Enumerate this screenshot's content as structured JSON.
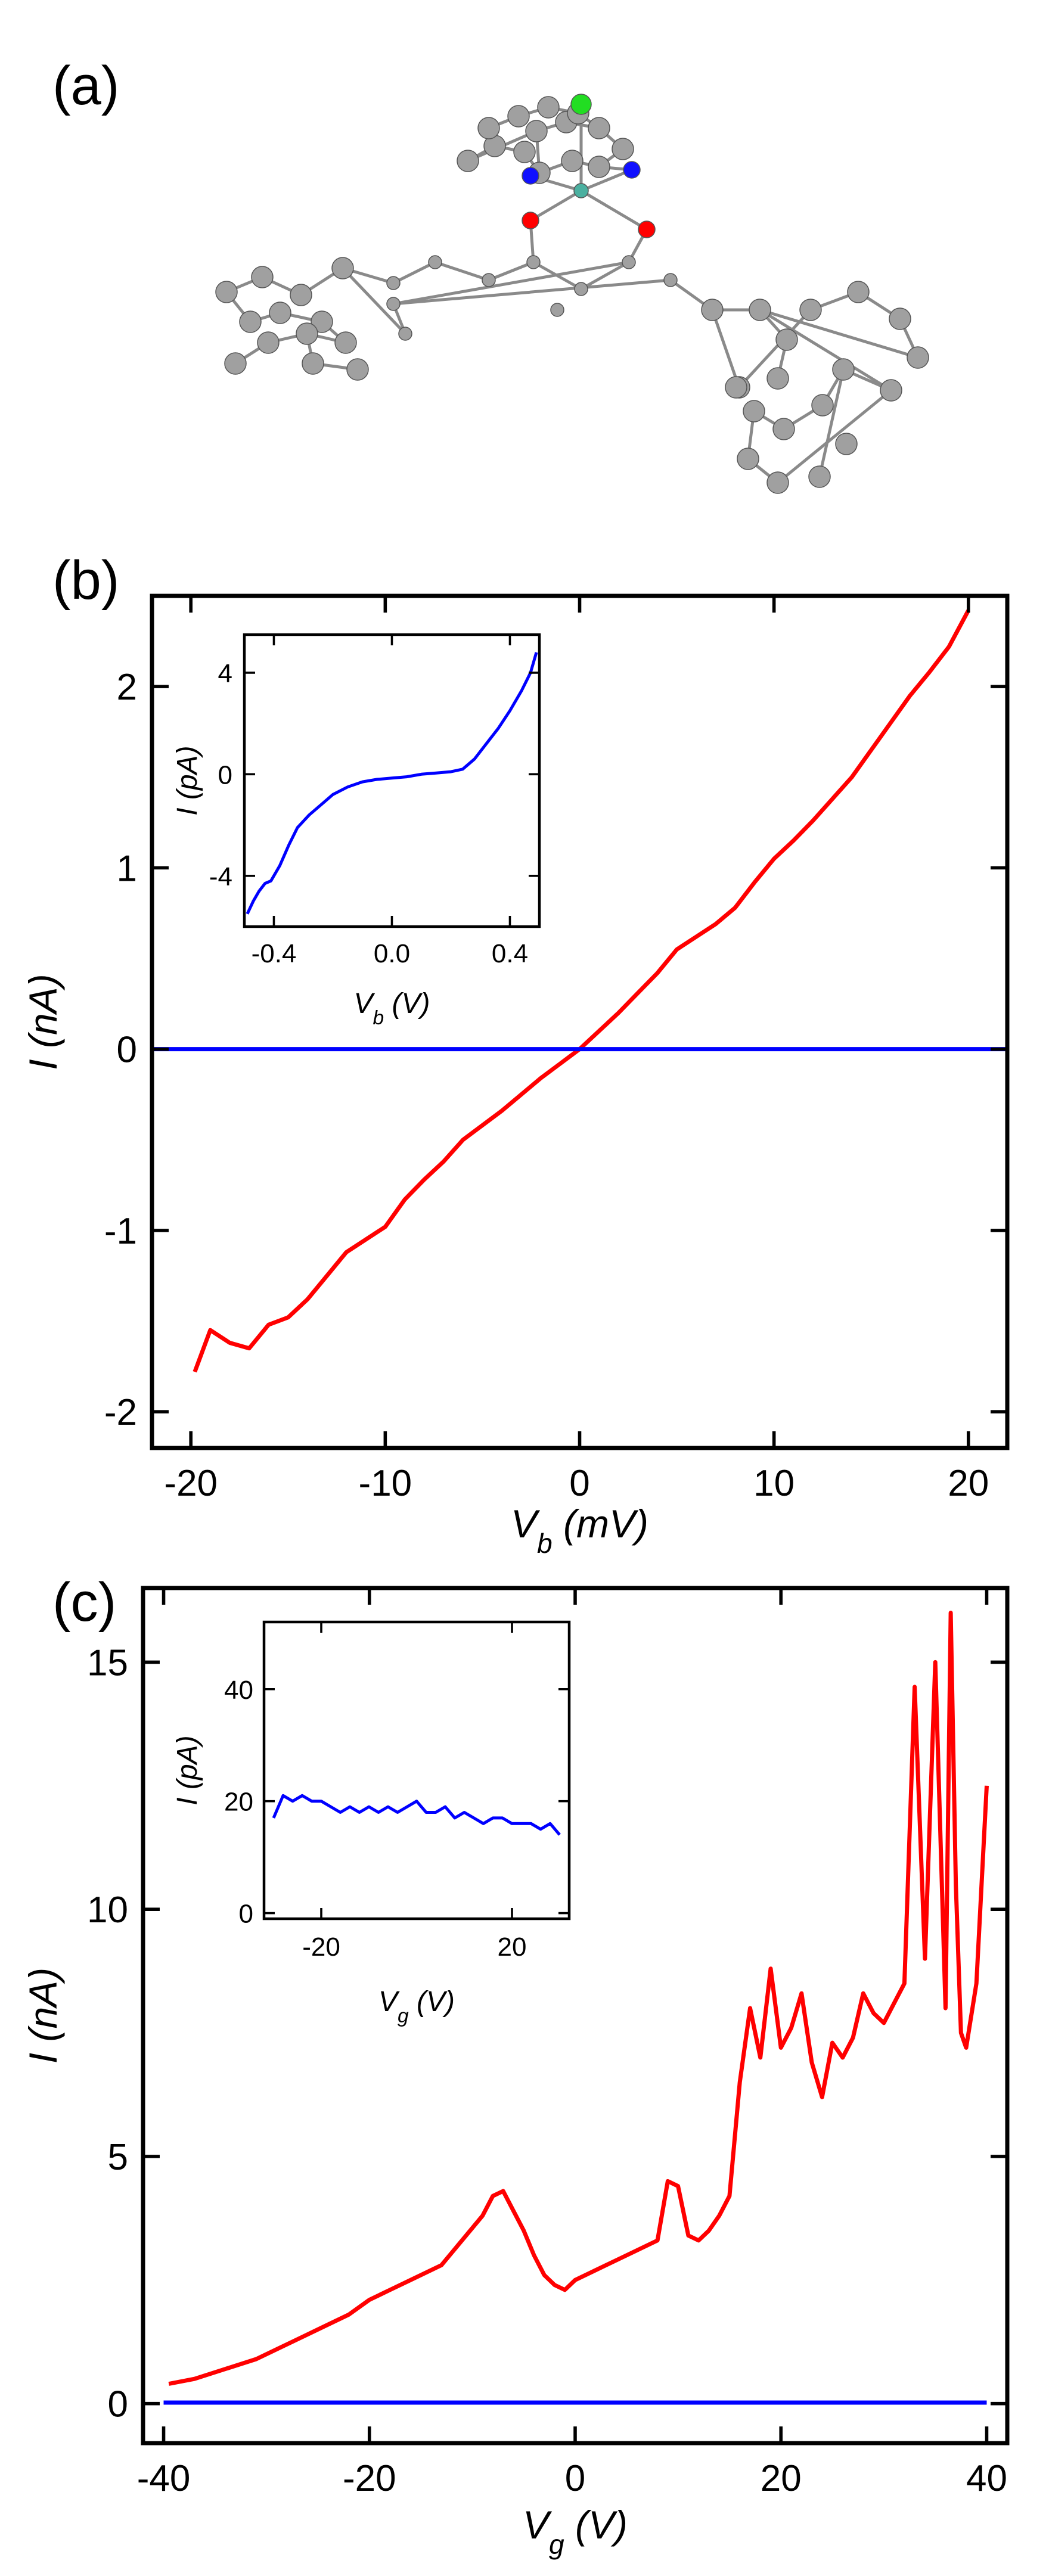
{
  "panels": {
    "a": {
      "label": "(a)"
    },
    "b": {
      "label": "(b)"
    },
    "c": {
      "label": "(c)"
    }
  },
  "chart_data": [
    {
      "id": "b-main",
      "type": "line",
      "xlabel_main": "V",
      "xlabel_sub": "b",
      "xlabel_unit": " (mV)",
      "ylabel": "I (nA)",
      "xlim": [
        -22,
        22
      ],
      "ylim": [
        -2.2,
        2.5
      ],
      "xticks": [
        -20,
        -10,
        0,
        10,
        20
      ],
      "xtick_labels": [
        "-20",
        "-10",
        "0",
        "10",
        "20"
      ],
      "yticks": [
        -2,
        -1,
        0,
        1,
        2
      ],
      "ytick_labels": [
        "-2",
        "-1",
        "0",
        "1",
        "2"
      ],
      "series": [
        {
          "color": "#ff0000",
          "x": [
            -19.8,
            -19,
            -18,
            -17,
            -16,
            -15,
            -14,
            -13,
            -12,
            -11,
            -10,
            -9,
            -8,
            -7,
            -6,
            -5,
            -4,
            -3,
            -2,
            -1,
            0,
            1,
            2,
            3,
            4,
            5,
            6,
            7,
            8,
            9,
            10,
            11,
            12,
            13,
            14,
            15,
            16,
            17,
            18,
            19,
            20
          ],
          "y": [
            -1.78,
            -1.55,
            -1.62,
            -1.65,
            -1.52,
            -1.48,
            -1.38,
            -1.25,
            -1.12,
            -1.05,
            -0.98,
            -0.83,
            -0.72,
            -0.62,
            -0.5,
            -0.42,
            -0.34,
            -0.25,
            -0.16,
            -0.08,
            0,
            0.1,
            0.2,
            0.31,
            0.42,
            0.55,
            0.62,
            0.69,
            0.78,
            0.92,
            1.05,
            1.15,
            1.26,
            1.38,
            1.5,
            1.65,
            1.8,
            1.95,
            2.08,
            2.22,
            2.42
          ]
        },
        {
          "color": "#0000ff",
          "x": [
            -22,
            22
          ],
          "y": [
            0,
            0
          ]
        }
      ]
    },
    {
      "id": "b-inset",
      "type": "line",
      "xlabel_main": "V",
      "xlabel_sub": "b",
      "xlabel_unit": " (V)",
      "ylabel": "I (pA)",
      "xlim": [
        -0.5,
        0.5
      ],
      "ylim": [
        -6,
        5.5
      ],
      "xticks": [
        -0.4,
        0.0,
        0.4
      ],
      "xtick_labels": [
        "-0.4",
        "0.0",
        "0.4"
      ],
      "yticks": [
        -4,
        0,
        4
      ],
      "ytick_labels": [
        "-4",
        "0",
        "4"
      ],
      "series": [
        {
          "color": "#0000ff",
          "x": [
            -0.49,
            -0.47,
            -0.45,
            -0.43,
            -0.41,
            -0.38,
            -0.35,
            -0.32,
            -0.28,
            -0.24,
            -0.2,
            -0.15,
            -0.1,
            -0.05,
            0,
            0.05,
            0.1,
            0.15,
            0.2,
            0.24,
            0.28,
            0.32,
            0.36,
            0.4,
            0.44,
            0.47,
            0.49
          ],
          "y": [
            -5.5,
            -5.0,
            -4.6,
            -4.3,
            -4.2,
            -3.6,
            -2.8,
            -2.1,
            -1.6,
            -1.2,
            -0.8,
            -0.5,
            -0.3,
            -0.2,
            -0.15,
            -0.1,
            0,
            0.05,
            0.1,
            0.2,
            0.6,
            1.2,
            1.8,
            2.5,
            3.3,
            4.0,
            4.8
          ]
        }
      ]
    },
    {
      "id": "c-main",
      "type": "line",
      "xlabel_main": "V",
      "xlabel_sub": "g",
      "xlabel_unit": " (V)",
      "ylabel": "I (nA)",
      "xlim": [
        -42,
        42
      ],
      "ylim": [
        -0.8,
        16.5
      ],
      "xticks": [
        -40,
        -20,
        0,
        20,
        40
      ],
      "xtick_labels": [
        "-40",
        "-20",
        "0",
        "20",
        "40"
      ],
      "yticks": [
        0,
        5,
        10,
        15
      ],
      "ytick_labels": [
        "0",
        "5",
        "10",
        "15"
      ],
      "series": [
        {
          "color": "#ff0000",
          "x": [
            -39.5,
            -37,
            -34,
            -31,
            -28,
            -25,
            -22,
            -20,
            -18,
            -16,
            -13,
            -11,
            -9,
            -8,
            -7,
            -6,
            -5,
            -4,
            -3,
            -2,
            -1,
            0,
            2,
            4,
            6,
            8,
            9,
            10,
            11,
            12,
            13,
            14,
            15,
            16,
            17,
            18,
            19,
            20,
            21,
            22,
            23,
            24,
            25,
            26,
            27,
            28,
            29,
            30,
            31,
            32,
            33,
            34,
            35,
            36,
            36.5,
            37,
            37.5,
            38,
            39,
            40
          ],
          "y": [
            0.4,
            0.5,
            0.7,
            0.9,
            1.2,
            1.5,
            1.8,
            2.1,
            2.3,
            2.5,
            2.8,
            3.3,
            3.8,
            4.2,
            4.3,
            3.9,
            3.5,
            3.0,
            2.6,
            2.4,
            2.3,
            2.5,
            2.7,
            2.9,
            3.1,
            3.3,
            4.5,
            4.4,
            3.4,
            3.3,
            3.5,
            3.8,
            4.2,
            6.5,
            8.0,
            7.0,
            8.8,
            7.2,
            7.6,
            8.3,
            6.9,
            6.2,
            7.3,
            7.0,
            7.4,
            8.3,
            7.9,
            7.7,
            8.1,
            8.5,
            14.5,
            9.0,
            15.0,
            8.0,
            16.0,
            10.5,
            7.5,
            7.2,
            8.5,
            12.5
          ]
        },
        {
          "color": "#0000ff",
          "x": [
            -40,
            40
          ],
          "y": [
            0.02,
            0.02
          ]
        }
      ]
    },
    {
      "id": "c-inset",
      "type": "line",
      "xlabel_main": "V",
      "xlabel_sub": "g",
      "xlabel_unit": " (V)",
      "ylabel": "I (pA)",
      "xlim": [
        -32,
        32
      ],
      "ylim": [
        -1,
        52
      ],
      "xticks": [
        -20,
        20
      ],
      "xtick_labels": [
        "-20",
        "20"
      ],
      "yticks": [
        0,
        20,
        40
      ],
      "ytick_labels": [
        "0",
        "20",
        "40"
      ],
      "series": [
        {
          "color": "#0000ff",
          "x": [
            -30,
            -28,
            -26,
            -24,
            -22,
            -20,
            -18,
            -16,
            -14,
            -12,
            -10,
            -8,
            -6,
            -4,
            -2,
            0,
            2,
            4,
            6,
            8,
            10,
            12,
            14,
            16,
            18,
            20,
            22,
            24,
            26,
            28,
            30
          ],
          "y": [
            17,
            21,
            20,
            21,
            20,
            20,
            19,
            18,
            19,
            18,
            19,
            18,
            19,
            18,
            19,
            20,
            18,
            18,
            19,
            17,
            18,
            17,
            16,
            17,
            17,
            16,
            16,
            16,
            15,
            16,
            14
          ]
        }
      ]
    }
  ]
}
